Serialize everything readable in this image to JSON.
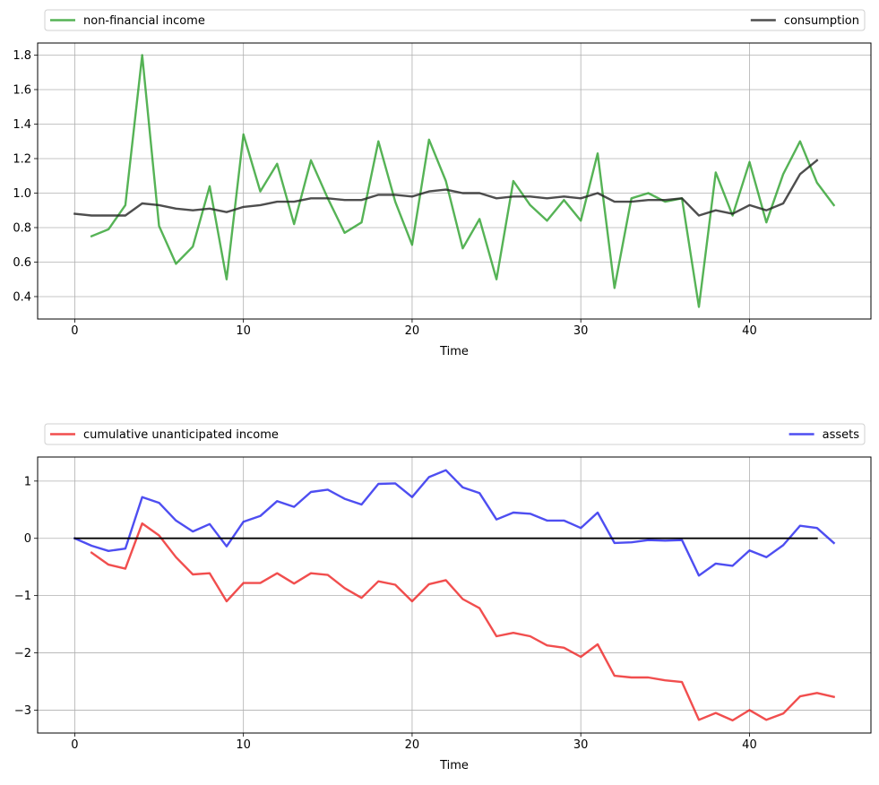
{
  "chart_data": [
    {
      "type": "line",
      "title": "",
      "xlabel": "Time",
      "ylabel": "",
      "xlim": [
        -2.2,
        47.2
      ],
      "ylim": [
        0.27,
        1.87
      ],
      "xticks": [
        0,
        10,
        20,
        30,
        40
      ],
      "yticks": [
        0.4,
        0.6,
        0.8,
        1.0,
        1.2,
        1.4,
        1.6,
        1.8
      ],
      "ytick_labels": [
        "0.4",
        "0.6",
        "0.8",
        "1.0",
        "1.2",
        "1.4",
        "1.6",
        "1.8"
      ],
      "grid": true,
      "legend": "above-plot",
      "series": [
        {
          "name": "non-financial income",
          "color": "#2ca02c",
          "x": [
            1,
            2,
            3,
            4,
            5,
            6,
            7,
            8,
            9,
            10,
            11,
            12,
            13,
            14,
            15,
            16,
            17,
            18,
            19,
            20,
            21,
            22,
            23,
            24,
            25,
            26,
            27,
            28,
            29,
            30,
            31,
            32,
            33,
            34,
            35,
            36,
            37,
            38,
            39,
            40,
            41,
            42,
            43,
            44,
            45
          ],
          "y": [
            0.75,
            0.79,
            0.93,
            1.8,
            0.81,
            0.59,
            0.69,
            1.04,
            0.5,
            1.34,
            1.01,
            1.17,
            0.82,
            1.19,
            0.97,
            0.77,
            0.83,
            1.3,
            0.95,
            0.7,
            1.31,
            1.07,
            0.68,
            0.85,
            0.5,
            1.07,
            0.93,
            0.84,
            0.96,
            0.84,
            1.23,
            0.45,
            0.97,
            1.0,
            0.95,
            0.97,
            0.34,
            1.12,
            0.87,
            1.18,
            0.83,
            1.11,
            1.3,
            1.06,
            0.93
          ]
        },
        {
          "name": "consumption",
          "color": "#222222",
          "x": [
            0,
            1,
            2,
            3,
            4,
            5,
            6,
            7,
            8,
            9,
            10,
            11,
            12,
            13,
            14,
            15,
            16,
            17,
            18,
            19,
            20,
            21,
            22,
            23,
            24,
            25,
            26,
            27,
            28,
            29,
            30,
            31,
            32,
            33,
            34,
            35,
            36,
            37,
            38,
            39,
            40,
            41,
            42,
            43,
            44
          ],
          "y": [
            0.88,
            0.87,
            0.87,
            0.87,
            0.94,
            0.93,
            0.91,
            0.9,
            0.91,
            0.89,
            0.92,
            0.93,
            0.95,
            0.95,
            0.97,
            0.97,
            0.96,
            0.96,
            0.99,
            0.99,
            0.98,
            1.01,
            1.02,
            1.0,
            1.0,
            0.97,
            0.98,
            0.98,
            0.97,
            0.98,
            0.97,
            1.0,
            0.95,
            0.95,
            0.96,
            0.96,
            0.97,
            0.87,
            0.9,
            0.88,
            0.93,
            0.9,
            0.94,
            1.11,
            1.19
          ]
        }
      ]
    },
    {
      "type": "line",
      "title": "",
      "xlabel": "Time",
      "ylabel": "",
      "xlim": [
        -2.2,
        47.2
      ],
      "ylim": [
        -3.4,
        1.42
      ],
      "xticks": [
        0,
        10,
        20,
        30,
        40
      ],
      "yticks": [
        -3,
        -2,
        -1,
        0,
        1
      ],
      "ytick_labels": [
        "−3",
        "−2",
        "−1",
        "0",
        "1"
      ],
      "grid": true,
      "legend": "above-plot",
      "series": [
        {
          "name": "cumulative unanticipated income",
          "color": "#ee2222",
          "x": [
            1,
            2,
            3,
            4,
            5,
            6,
            7,
            8,
            9,
            10,
            11,
            12,
            13,
            14,
            15,
            16,
            17,
            18,
            19,
            20,
            21,
            22,
            23,
            24,
            25,
            26,
            27,
            28,
            29,
            30,
            31,
            32,
            33,
            34,
            35,
            36,
            37,
            38,
            39,
            40,
            41,
            42,
            43,
            44,
            45
          ],
          "y": [
            -0.25,
            -0.46,
            -0.53,
            0.26,
            0.05,
            -0.33,
            -0.63,
            -0.61,
            -1.1,
            -0.78,
            -0.78,
            -0.61,
            -0.79,
            -0.61,
            -0.64,
            -0.87,
            -1.04,
            -0.75,
            -0.81,
            -1.1,
            -0.8,
            -0.73,
            -1.06,
            -1.22,
            -1.71,
            -1.65,
            -1.71,
            -1.87,
            -1.91,
            -2.07,
            -1.85,
            -2.4,
            -2.43,
            -2.43,
            -2.48,
            -2.51,
            -3.17,
            -3.05,
            -3.18,
            -3.0,
            -3.17,
            -3.06,
            -2.76,
            -2.7,
            -2.77
          ]
        },
        {
          "name": "assets",
          "color": "#2222ee",
          "x": [
            0,
            1,
            2,
            3,
            4,
            5,
            6,
            7,
            8,
            9,
            10,
            11,
            12,
            13,
            14,
            15,
            16,
            17,
            18,
            19,
            20,
            21,
            22,
            23,
            24,
            25,
            26,
            27,
            28,
            29,
            30,
            31,
            32,
            33,
            34,
            35,
            36,
            37,
            38,
            39,
            40,
            41,
            42,
            43,
            44,
            45
          ],
          "y": [
            0.0,
            -0.13,
            -0.22,
            -0.18,
            0.72,
            0.62,
            0.31,
            0.12,
            0.25,
            -0.14,
            0.29,
            0.39,
            0.65,
            0.55,
            0.81,
            0.85,
            0.69,
            0.59,
            0.95,
            0.96,
            0.72,
            1.07,
            1.19,
            0.89,
            0.79,
            0.33,
            0.45,
            0.43,
            0.31,
            0.31,
            0.18,
            0.45,
            -0.08,
            -0.07,
            -0.03,
            -0.04,
            -0.03,
            -0.65,
            -0.44,
            -0.48,
            -0.21,
            -0.33,
            -0.12,
            0.22,
            0.18,
            -0.08
          ]
        },
        {
          "name": "",
          "color": "#000000",
          "x": [
            0,
            44
          ],
          "y": [
            0,
            0
          ]
        }
      ]
    }
  ]
}
